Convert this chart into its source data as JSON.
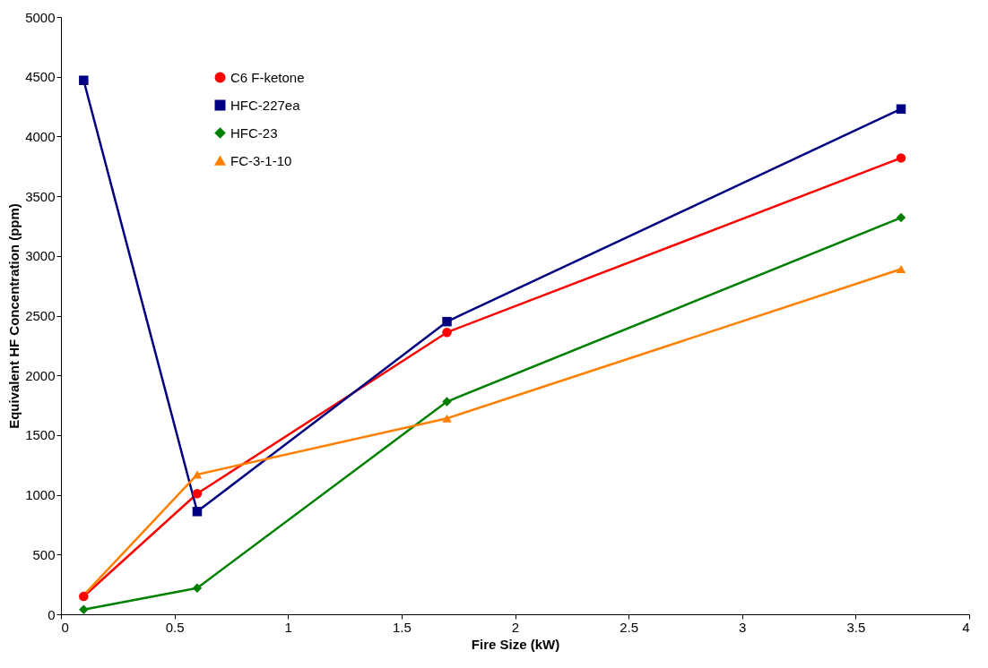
{
  "chart_data": {
    "type": "line",
    "xlabel": "Fire Size (kW)",
    "ylabel": "Equivalent HF Concentration (ppm)",
    "x": [
      0.1,
      0.6,
      1.7,
      3.7
    ],
    "series": [
      {
        "name": "C6 F-ketone",
        "color": "#ff0000",
        "marker": "circle",
        "values": [
          150,
          1010,
          2360,
          3820
        ]
      },
      {
        "name": "HFC-227ea",
        "color": "#000080",
        "marker": "square",
        "values": [
          4470,
          860,
          2450,
          4230
        ]
      },
      {
        "name": "HFC-23",
        "color": "#008000",
        "marker": "diamond",
        "values": [
          40,
          220,
          1780,
          3320
        ]
      },
      {
        "name": "FC-3-1-10",
        "color": "#ff8000",
        "marker": "triangle",
        "values": [
          160,
          1170,
          1640,
          2890
        ]
      }
    ],
    "xlim": [
      0,
      4
    ],
    "xticks": [
      0,
      0.5,
      1,
      1.5,
      2,
      2.5,
      3,
      3.5,
      4
    ],
    "ylim": [
      0,
      5000
    ],
    "yticks": [
      0,
      500,
      1000,
      1500,
      2000,
      2500,
      3000,
      3500,
      4000,
      4500,
      5000
    ],
    "grid": false,
    "legend": "top left",
    "line_style": "solid"
  }
}
